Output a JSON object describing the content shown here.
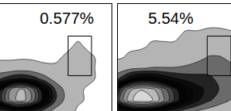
{
  "chart_data": [
    {
      "type": "contour",
      "x": [
        0,
        10,
        20,
        30,
        40,
        50,
        60,
        70,
        80,
        90,
        100
      ],
      "y": [
        0,
        10,
        20,
        30,
        40,
        50,
        60,
        70,
        80,
        90,
        100
      ],
      "z": [
        [
          16,
          23,
          26,
          21,
          12,
          5,
          2,
          0,
          0,
          0,
          0
        ],
        [
          52,
          77,
          85,
          68,
          40,
          16,
          5,
          1,
          0,
          0,
          0
        ],
        [
          48,
          74,
          83,
          66,
          38,
          15,
          5,
          1,
          0,
          0,
          0
        ],
        [
          16,
          23,
          26,
          21,
          12,
          5,
          2,
          1,
          1,
          0,
          0
        ],
        [
          2,
          2,
          3,
          2,
          1,
          1,
          1,
          1,
          1,
          0,
          0
        ],
        [
          0,
          0,
          0,
          0,
          0,
          0,
          1,
          1,
          1,
          0,
          0
        ],
        [
          0,
          0,
          0,
          0,
          0,
          0,
          0,
          1,
          0,
          0,
          0
        ],
        [
          0,
          0,
          0,
          0,
          0,
          0,
          0,
          0,
          0,
          0,
          0
        ],
        [
          0,
          0,
          0,
          0,
          0,
          0,
          0,
          0,
          0,
          0,
          0
        ],
        [
          0,
          0,
          0,
          0,
          0,
          0,
          0,
          0,
          0,
          0,
          0
        ],
        [
          0,
          0,
          0,
          0,
          0,
          0,
          0,
          0,
          0,
          0,
          0
        ]
      ],
      "xlim": [
        0,
        100
      ],
      "ylim": [
        0,
        100
      ],
      "tick_labels": false,
      "grid": false,
      "gate": {
        "x": [
          61,
          82
        ],
        "y": [
          33,
          70
        ],
        "label": "0.577%"
      }
    },
    {
      "type": "contour",
      "x": [
        0,
        10,
        20,
        30,
        40,
        50,
        60,
        70,
        80,
        90,
        100
      ],
      "y": [
        0,
        10,
        20,
        30,
        40,
        50,
        60,
        70,
        80,
        90,
        100
      ],
      "z": [
        [
          20,
          30,
          34,
          32,
          26,
          18,
          12,
          8,
          5,
          3,
          2
        ],
        [
          60,
          85,
          95,
          90,
          75,
          55,
          38,
          26,
          18,
          12,
          8
        ],
        [
          50,
          78,
          88,
          84,
          70,
          52,
          38,
          28,
          22,
          16,
          12
        ],
        [
          15,
          30,
          38,
          38,
          32,
          26,
          22,
          20,
          18,
          15,
          12
        ],
        [
          3,
          6,
          8,
          9,
          9,
          9,
          10,
          12,
          14,
          13,
          10
        ],
        [
          0,
          1,
          2,
          2,
          3,
          3,
          4,
          6,
          9,
          9,
          7
        ],
        [
          0,
          0,
          0,
          1,
          1,
          1,
          2,
          3,
          5,
          5,
          4
        ],
        [
          0,
          0,
          0,
          0,
          0,
          0,
          1,
          1,
          2,
          2,
          1
        ],
        [
          0,
          0,
          0,
          0,
          0,
          0,
          0,
          0,
          0,
          0,
          0
        ],
        [
          0,
          0,
          0,
          0,
          0,
          0,
          0,
          0,
          0,
          0,
          0
        ],
        [
          0,
          0,
          0,
          0,
          0,
          0,
          0,
          0,
          0,
          0,
          0
        ]
      ],
      "xlim": [
        0,
        100
      ],
      "ylim": [
        0,
        100
      ],
      "tick_labels": false,
      "grid": false,
      "gate": {
        "x": [
          79,
          100
        ],
        "y": [
          33,
          70
        ],
        "label": "5.54%"
      }
    }
  ]
}
